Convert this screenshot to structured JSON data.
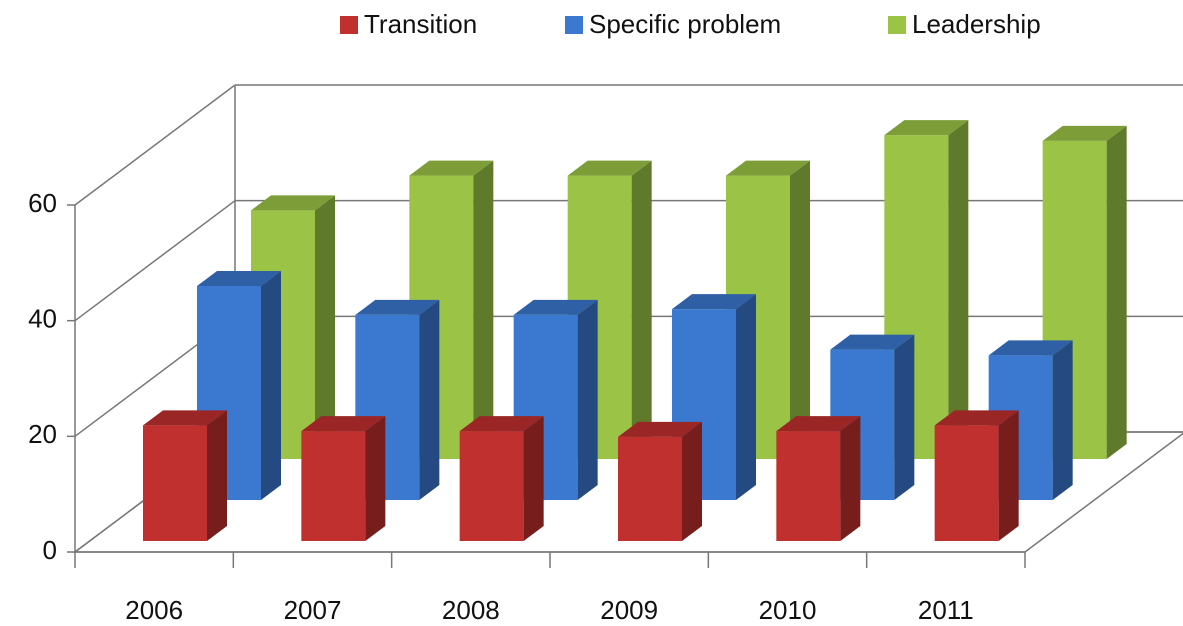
{
  "chart_data": {
    "type": "bar3d",
    "categories": [
      "2006",
      "2007",
      "2008",
      "2009",
      "2010",
      "2011"
    ],
    "series": [
      {
        "name": "Transition",
        "color": "#c0302f",
        "values": [
          20,
          19,
          19,
          18,
          19,
          20
        ]
      },
      {
        "name": "Specific problem",
        "color": "#3b78d0",
        "values": [
          37,
          32,
          32,
          33,
          26,
          25
        ]
      },
      {
        "name": "Leadership",
        "color": "#9bc446",
        "values": [
          43,
          49,
          49,
          49,
          56,
          55
        ]
      }
    ],
    "ylim": [
      0,
      60
    ],
    "yticks": [
      0,
      20,
      40,
      60
    ],
    "grid": true
  }
}
